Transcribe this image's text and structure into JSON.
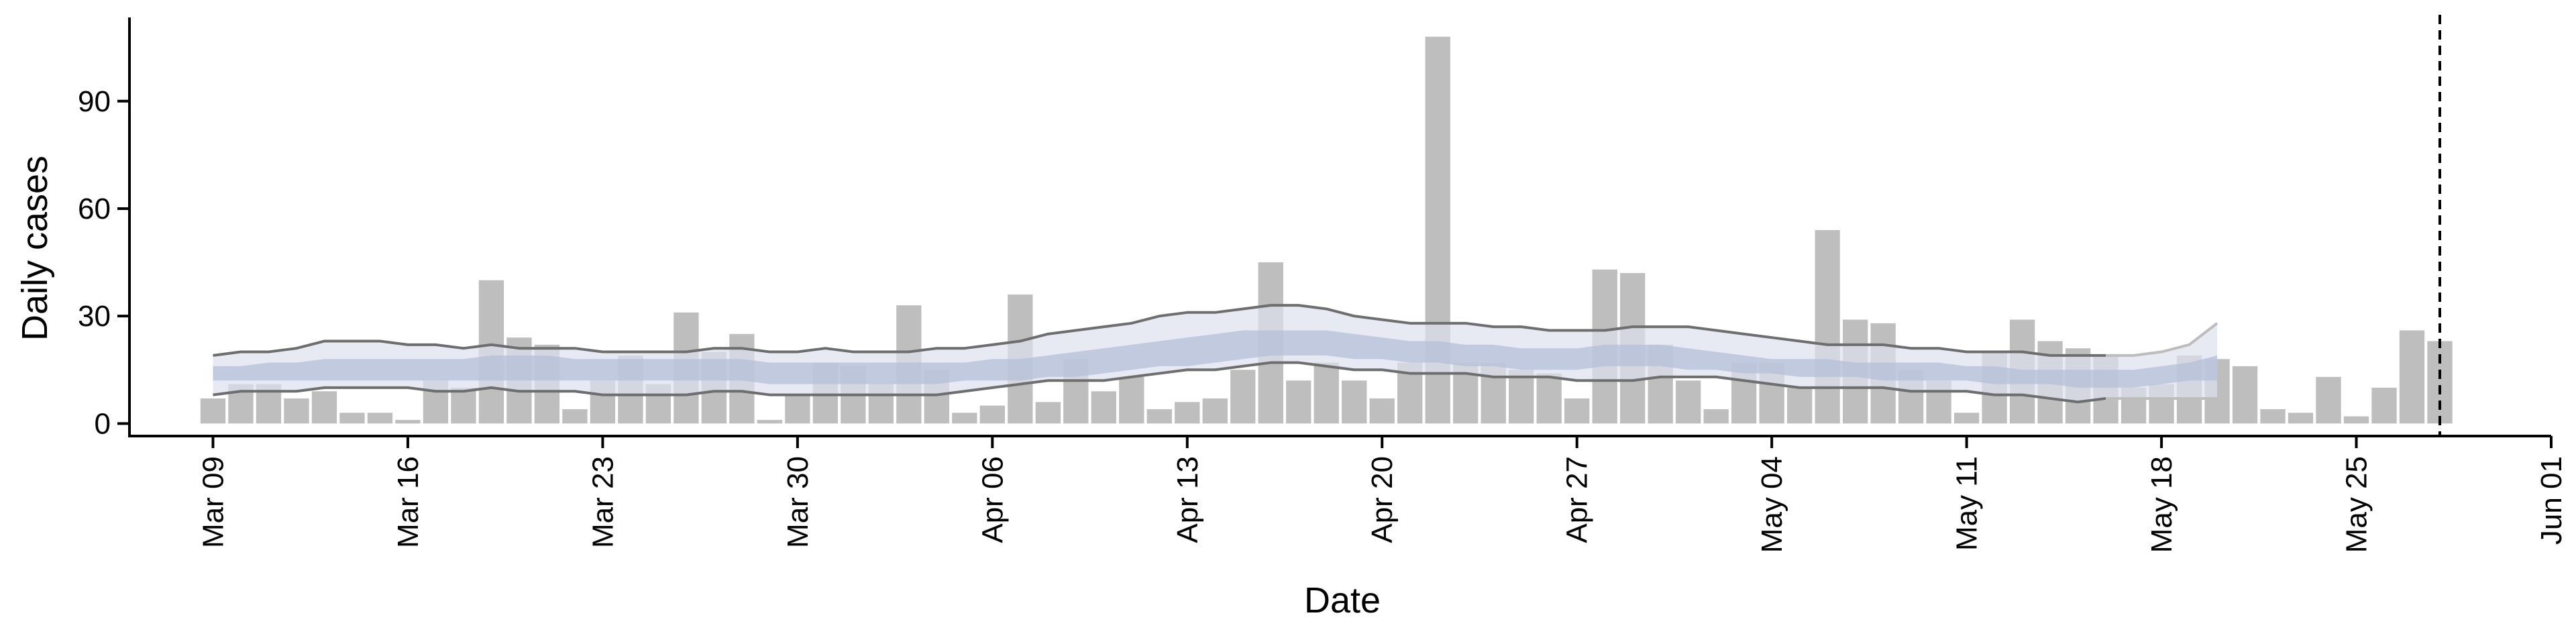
{
  "chart_data": {
    "type": "bar",
    "title": "",
    "xlabel": "Date",
    "ylabel": "Daily cases",
    "x_axis": {
      "start_date": "2020-03-09",
      "range": [
        "2020-03-06",
        "2020-06-01"
      ],
      "ticks": [
        {
          "date": "2020-03-09",
          "label": "Mar 09"
        },
        {
          "date": "2020-03-16",
          "label": "Mar 16"
        },
        {
          "date": "2020-03-23",
          "label": "Mar 23"
        },
        {
          "date": "2020-03-30",
          "label": "Mar 30"
        },
        {
          "date": "2020-04-06",
          "label": "Apr 06"
        },
        {
          "date": "2020-04-13",
          "label": "Apr 13"
        },
        {
          "date": "2020-04-20",
          "label": "Apr 20"
        },
        {
          "date": "2020-04-27",
          "label": "Apr 27"
        },
        {
          "date": "2020-05-04",
          "label": "May 04"
        },
        {
          "date": "2020-05-11",
          "label": "May 11"
        },
        {
          "date": "2020-05-18",
          "label": "May 18"
        },
        {
          "date": "2020-05-25",
          "label": "May 25"
        },
        {
          "date": "2020-06-01",
          "label": "Jun 01"
        }
      ]
    },
    "y_axis": {
      "range": [
        -3.5,
        113
      ],
      "ticks": [
        0,
        30,
        60,
        90
      ]
    },
    "daily_cases": [
      7,
      11,
      11,
      7,
      9,
      3,
      3,
      1,
      12,
      10,
      40,
      24,
      22,
      4,
      12,
      19,
      11,
      31,
      20,
      25,
      1,
      8,
      17,
      16,
      11,
      33,
      15,
      3,
      5,
      36,
      6,
      18,
      9,
      13,
      4,
      6,
      7,
      15,
      45,
      12,
      17,
      12,
      7,
      17,
      108,
      17,
      17,
      15,
      14,
      7,
      43,
      42,
      22,
      12,
      4,
      17,
      17,
      10,
      54,
      29,
      28,
      15,
      12,
      3,
      20,
      29,
      23,
      21,
      19,
      10,
      11,
      19,
      18,
      16,
      4,
      3,
      13,
      2,
      10,
      26,
      23
    ],
    "estimate": {
      "median": [
        14,
        14,
        14,
        14,
        14,
        14,
        14,
        14,
        14,
        15,
        15,
        15,
        15,
        15,
        15,
        15,
        15,
        15,
        15,
        15,
        14,
        14,
        14,
        14,
        14,
        14,
        14,
        14,
        15,
        15,
        16,
        16,
        17,
        18,
        19,
        20,
        21,
        22,
        23,
        23,
        22,
        21,
        21,
        20,
        20,
        19,
        19,
        18,
        18,
        18,
        19,
        19,
        19,
        18,
        18,
        17,
        16,
        16,
        15,
        15,
        15,
        15,
        15,
        14,
        14,
        13,
        13,
        13,
        13,
        13,
        13,
        14,
        15
      ],
      "inner_upper": [
        16,
        16,
        17,
        17,
        18,
        18,
        18,
        18,
        18,
        18,
        19,
        19,
        19,
        18,
        18,
        18,
        18,
        18,
        18,
        18,
        17,
        17,
        17,
        17,
        17,
        17,
        17,
        17,
        18,
        18,
        19,
        20,
        21,
        22,
        23,
        24,
        25,
        26,
        26,
        26,
        26,
        25,
        24,
        23,
        23,
        22,
        22,
        21,
        21,
        21,
        22,
        22,
        22,
        21,
        20,
        19,
        18,
        18,
        18,
        17,
        17,
        17,
        17,
        16,
        16,
        15,
        15,
        15,
        15,
        15,
        16,
        17,
        19
      ],
      "inner_lower": [
        12,
        12,
        12,
        12,
        12,
        12,
        12,
        12,
        12,
        12,
        12,
        12,
        12,
        12,
        12,
        12,
        12,
        12,
        12,
        12,
        11,
        11,
        11,
        11,
        11,
        11,
        11,
        12,
        12,
        12,
        13,
        13,
        14,
        15,
        16,
        16,
        17,
        18,
        19,
        19,
        19,
        18,
        18,
        17,
        17,
        16,
        16,
        15,
        15,
        15,
        16,
        16,
        16,
        15,
        15,
        14,
        14,
        13,
        13,
        13,
        12,
        12,
        12,
        12,
        11,
        11,
        11,
        10,
        10,
        10,
        11,
        12,
        12
      ],
      "upper": [
        19,
        20,
        20,
        21,
        23,
        23,
        23,
        22,
        22,
        21,
        22,
        21,
        21,
        21,
        20,
        20,
        20,
        20,
        21,
        21,
        20,
        20,
        21,
        20,
        20,
        20,
        21,
        21,
        22,
        23,
        25,
        26,
        27,
        28,
        30,
        31,
        31,
        32,
        33,
        33,
        32,
        30,
        29,
        28,
        28,
        28,
        27,
        27,
        26,
        26,
        26,
        27,
        27,
        27,
        26,
        25,
        24,
        23,
        22,
        22,
        22,
        21,
        21,
        20,
        20,
        20,
        19,
        19,
        19,
        19,
        20,
        22,
        28
      ],
      "lower": [
        8,
        9,
        9,
        9,
        10,
        10,
        10,
        10,
        9,
        9,
        10,
        9,
        9,
        9,
        8,
        8,
        8,
        8,
        9,
        9,
        8,
        8,
        8,
        8,
        8,
        8,
        8,
        9,
        10,
        11,
        12,
        12,
        12,
        13,
        14,
        15,
        15,
        16,
        17,
        17,
        16,
        15,
        15,
        14,
        14,
        14,
        13,
        13,
        13,
        12,
        12,
        12,
        13,
        13,
        13,
        12,
        11,
        10,
        10,
        10,
        10,
        9,
        9,
        9,
        8,
        8,
        7,
        6,
        7,
        7,
        7,
        7,
        7
      ]
    },
    "vline_date": "2020-05-28",
    "colors": {
      "bars": "#bebebe",
      "ci_outer_fill": "#dde1ee",
      "ci_inner_fill": "#b4bfd8",
      "ci_lines": "#6e6e6e",
      "ci_tail_line": "#bdbdbd",
      "axis": "#000000",
      "vline": "#000000"
    }
  }
}
